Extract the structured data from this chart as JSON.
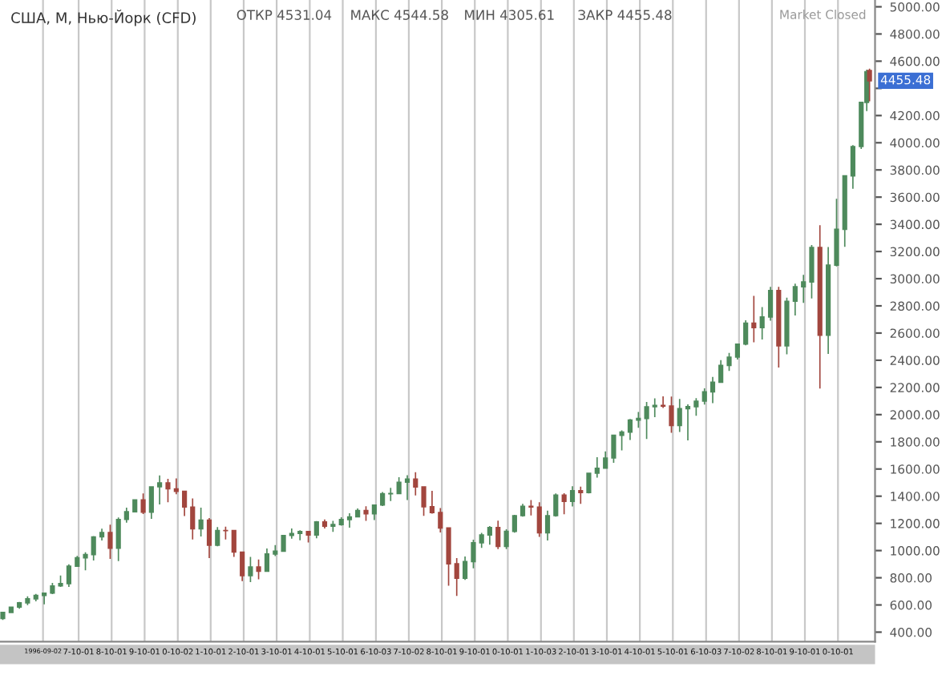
{
  "chart_data": {
    "type": "candlestick",
    "title": "США, М, Нью-Йорк (CFD)",
    "annotations": [
      "ОТКР 4531.04",
      "МАКС 4544.58",
      "МИН 4305.61",
      "ЗАКР 4455.48",
      "Market Closed",
      {
        "text": "4455.48",
        "x": "2021-09",
        "y": 4455.48
      }
    ],
    "x": [
      "1995-06",
      "1995-09",
      "1995-12",
      "1996-03",
      "1996-06",
      "1996-09",
      "1996-12",
      "1997-03",
      "1997-06",
      "1997-09",
      "1997-12",
      "1998-03",
      "1998-06",
      "1998-09",
      "1998-12",
      "1999-03",
      "1999-06",
      "1999-09",
      "1999-12",
      "2000-03",
      "2000-06",
      "2000-09",
      "2000-12",
      "2001-03",
      "2001-06",
      "2001-09",
      "2001-12",
      "2002-03",
      "2002-06",
      "2002-09",
      "2002-12",
      "2003-03",
      "2003-06",
      "2003-09",
      "2003-12",
      "2004-03",
      "2004-06",
      "2004-09",
      "2004-12",
      "2005-03",
      "2005-06",
      "2005-09",
      "2005-12",
      "2006-03",
      "2006-06",
      "2006-09",
      "2006-12",
      "2007-03",
      "2007-06",
      "2007-09",
      "2007-12",
      "2008-03",
      "2008-06",
      "2008-09",
      "2008-12",
      "2009-03",
      "2009-06",
      "2009-09",
      "2009-12",
      "2010-03",
      "2010-06",
      "2010-09",
      "2010-12",
      "2011-03",
      "2011-06",
      "2011-09",
      "2011-12",
      "2012-03",
      "2012-06",
      "2012-09",
      "2012-12",
      "2013-03",
      "2013-06",
      "2013-09",
      "2013-12",
      "2014-03",
      "2014-06",
      "2014-09",
      "2014-12",
      "2015-03",
      "2015-06",
      "2015-09",
      "2015-12",
      "2016-03",
      "2016-06",
      "2016-09",
      "2016-12",
      "2017-03",
      "2017-06",
      "2017-09",
      "2017-12",
      "2018-03",
      "2018-06",
      "2018-09",
      "2018-12",
      "2019-03",
      "2019-06",
      "2019-09",
      "2019-12",
      "2020-03",
      "2020-06",
      "2020-09",
      "2020-12",
      "2021-03",
      "2021-06",
      "2021-08",
      "2021-09"
    ],
    "ohlc": [
      [
        500,
        549,
        490,
        545
      ],
      [
        545,
        586,
        540,
        584
      ],
      [
        584,
        622,
        572,
        616
      ],
      [
        616,
        664,
        598,
        645
      ],
      [
        645,
        681,
        627,
        670
      ],
      [
        670,
        690,
        605,
        687
      ],
      [
        687,
        762,
        680,
        740
      ],
      [
        740,
        817,
        733,
        757
      ],
      [
        757,
        899,
        733,
        885
      ],
      [
        885,
        961,
        882,
        947
      ],
      [
        947,
        987,
        855,
        970
      ],
      [
        970,
        1106,
        927,
        1101
      ],
      [
        1101,
        1161,
        1074,
        1133
      ],
      [
        1133,
        1190,
        939,
        1017
      ],
      [
        1017,
        1244,
        923,
        1229
      ],
      [
        1229,
        1316,
        1205,
        1286
      ],
      [
        1286,
        1373,
        1281,
        1372
      ],
      [
        1372,
        1421,
        1268,
        1282
      ],
      [
        1282,
        1473,
        1233,
        1469
      ],
      [
        1469,
        1553,
        1339,
        1498
      ],
      [
        1498,
        1528,
        1356,
        1454
      ],
      [
        1454,
        1530,
        1414,
        1436
      ],
      [
        1436,
        1436,
        1254,
        1320
      ],
      [
        1320,
        1383,
        1081,
        1160
      ],
      [
        1160,
        1316,
        1103,
        1224
      ],
      [
        1224,
        1239,
        944,
        1040
      ],
      [
        1040,
        1173,
        1032,
        1148
      ],
      [
        1148,
        1176,
        1081,
        1147
      ],
      [
        1147,
        1147,
        953,
        989
      ],
      [
        989,
        994,
        775,
        815
      ],
      [
        815,
        954,
        768,
        879
      ],
      [
        879,
        935,
        789,
        848
      ],
      [
        848,
        1015,
        847,
        975
      ],
      [
        975,
        1040,
        960,
        995
      ],
      [
        995,
        1112,
        992,
        1111
      ],
      [
        1111,
        1163,
        1087,
        1126
      ],
      [
        1126,
        1150,
        1076,
        1140
      ],
      [
        1140,
        1140,
        1060,
        1114
      ],
      [
        1114,
        1217,
        1090,
        1211
      ],
      [
        1211,
        1229,
        1163,
        1180
      ],
      [
        1180,
        1219,
        1137,
        1191
      ],
      [
        1191,
        1245,
        1183,
        1228
      ],
      [
        1228,
        1275,
        1168,
        1248
      ],
      [
        1248,
        1310,
        1245,
        1294
      ],
      [
        1294,
        1326,
        1219,
        1270
      ],
      [
        1270,
        1340,
        1224,
        1335
      ],
      [
        1335,
        1431,
        1327,
        1418
      ],
      [
        1418,
        1461,
        1364,
        1420
      ],
      [
        1420,
        1540,
        1416,
        1503
      ],
      [
        1503,
        1555,
        1371,
        1526
      ],
      [
        1526,
        1576,
        1406,
        1468
      ],
      [
        1468,
        1471,
        1256,
        1322
      ],
      [
        1322,
        1440,
        1272,
        1280
      ],
      [
        1280,
        1313,
        1133,
        1166
      ],
      [
        1166,
        1167,
        741,
        903
      ],
      [
        903,
        944,
        667,
        797
      ],
      [
        797,
        956,
        784,
        919
      ],
      [
        919,
        1080,
        869,
        1057
      ],
      [
        1057,
        1130,
        1020,
        1115
      ],
      [
        1115,
        1180,
        1044,
        1169
      ],
      [
        1169,
        1220,
        1011,
        1030
      ],
      [
        1030,
        1157,
        1011,
        1141
      ],
      [
        1141,
        1263,
        1131,
        1257
      ],
      [
        1257,
        1344,
        1250,
        1325
      ],
      [
        1325,
        1371,
        1259,
        1320
      ],
      [
        1320,
        1356,
        1101,
        1131
      ],
      [
        1131,
        1293,
        1074,
        1257
      ],
      [
        1257,
        1420,
        1250,
        1408
      ],
      [
        1408,
        1422,
        1267,
        1362
      ],
      [
        1362,
        1474,
        1325,
        1440
      ],
      [
        1440,
        1470,
        1343,
        1426
      ],
      [
        1426,
        1570,
        1420,
        1569
      ],
      [
        1569,
        1687,
        1536,
        1606
      ],
      [
        1606,
        1730,
        1604,
        1681
      ],
      [
        1681,
        1849,
        1646,
        1848
      ],
      [
        1848,
        1884,
        1737,
        1872
      ],
      [
        1872,
        1968,
        1814,
        1960
      ],
      [
        1960,
        2019,
        1904,
        1972
      ],
      [
        1972,
        2093,
        1821,
        2058
      ],
      [
        2058,
        2119,
        1981,
        2067
      ],
      [
        2067,
        2134,
        2049,
        2063
      ],
      [
        2063,
        2133,
        1867,
        1920
      ],
      [
        1920,
        2116,
        1872,
        2044
      ],
      [
        2044,
        2075,
        1810,
        2059
      ],
      [
        2059,
        2121,
        1992,
        2099
      ],
      [
        2099,
        2193,
        2074,
        2168
      ],
      [
        2168,
        2278,
        2084,
        2238
      ],
      [
        2238,
        2401,
        2234,
        2362
      ],
      [
        2362,
        2454,
        2322,
        2423
      ],
      [
        2423,
        2519,
        2405,
        2519
      ],
      [
        2519,
        2694,
        2510,
        2673
      ],
      [
        2673,
        2873,
        2532,
        2640
      ],
      [
        2640,
        2791,
        2553,
        2718
      ],
      [
        2718,
        2940,
        2691,
        2913
      ],
      [
        2913,
        2940,
        2347,
        2506
      ],
      [
        2506,
        2860,
        2443,
        2834
      ],
      [
        2834,
        2964,
        2729,
        2941
      ],
      [
        2941,
        3028,
        2822,
        2976
      ],
      [
        2976,
        3248,
        2855,
        3230
      ],
      [
        3230,
        3394,
        2192,
        2584
      ],
      [
        2584,
        3233,
        2447,
        3100
      ],
      [
        3100,
        3588,
        3090,
        3363
      ],
      [
        3363,
        3760,
        3234,
        3756
      ],
      [
        3756,
        3983,
        3662,
        3972
      ],
      [
        3972,
        4300,
        3955,
        4297
      ],
      [
        4297,
        4537,
        4233,
        4523
      ],
      [
        4531.04,
        4544.58,
        4305.61,
        4455.48
      ]
    ],
    "colors": [
      "#4e8a5c",
      "#4e8a5c",
      "#4e8a5c",
      "#4e8a5c",
      "#4e8a5c",
      "#4e8a5c",
      "#4e8a5c",
      "#4e8a5c",
      "#4e8a5c",
      "#4e8a5c",
      "#4e8a5c",
      "#4e8a5c",
      "#4e8a5c",
      "#a2463e",
      "#4e8a5c",
      "#4e8a5c",
      "#4e8a5c",
      "#a2463e",
      "#4e8a5c",
      "#4e8a5c",
      "#a2463e",
      "#a2463e",
      "#a2463e",
      "#a2463e",
      "#4e8a5c",
      "#a2463e",
      "#4e8a5c",
      "#a2463e",
      "#a2463e",
      "#a2463e",
      "#4e8a5c",
      "#a2463e",
      "#4e8a5c",
      "#4e8a5c",
      "#4e8a5c",
      "#4e8a5c",
      "#4e8a5c",
      "#a2463e",
      "#4e8a5c",
      "#a2463e",
      "#4e8a5c",
      "#4e8a5c",
      "#4e8a5c",
      "#4e8a5c",
      "#a2463e",
      "#4e8a5c",
      "#4e8a5c",
      "#4e8a5c",
      "#4e8a5c",
      "#4e8a5c",
      "#a2463e",
      "#a2463e",
      "#a2463e",
      "#a2463e",
      "#a2463e",
      "#a2463e",
      "#4e8a5c",
      "#4e8a5c",
      "#4e8a5c",
      "#4e8a5c",
      "#a2463e",
      "#4e8a5c",
      "#4e8a5c",
      "#4e8a5c",
      "#a2463e",
      "#a2463e",
      "#4e8a5c",
      "#4e8a5c",
      "#a2463e",
      "#4e8a5c",
      "#a2463e",
      "#4e8a5c",
      "#4e8a5c",
      "#4e8a5c",
      "#4e8a5c",
      "#4e8a5c",
      "#4e8a5c",
      "#4e8a5c",
      "#4e8a5c",
      "#4e8a5c",
      "#a2463e",
      "#a2463e",
      "#4e8a5c",
      "#4e8a5c",
      "#4e8a5c",
      "#4e8a5c",
      "#4e8a5c",
      "#4e8a5c",
      "#4e8a5c",
      "#4e8a5c",
      "#4e8a5c",
      "#a2463e",
      "#4e8a5c",
      "#4e8a5c",
      "#a2463e",
      "#4e8a5c",
      "#4e8a5c",
      "#4e8a5c",
      "#4e8a5c",
      "#a2463e",
      "#4e8a5c",
      "#4e8a5c",
      "#4e8a5c",
      "#4e8a5c",
      "#4e8a5c",
      "#4e8a5c",
      "#a2463e"
    ],
    "xlim": [
      "1995-05",
      "2021-11"
    ],
    "xticks": [
      {
        "value": "1996-09-02",
        "label": "1996-09-02"
      },
      {
        "value": "1997-10-01",
        "label": "7-10-01"
      },
      {
        "value": "1998-10-01",
        "label": "8-10-01"
      },
      {
        "value": "1999-10-01",
        "label": "9-10-01"
      },
      {
        "value": "2000-10-02",
        "label": "0-10-02"
      },
      {
        "value": "2001-10-01",
        "label": "1-10-01"
      },
      {
        "value": "2002-10-01",
        "label": "2-10-01"
      },
      {
        "value": "2003-10-01",
        "label": "3-10-01"
      },
      {
        "value": "2004-10-01",
        "label": "4-10-01"
      },
      {
        "value": "2005-10-01",
        "label": "5-10-01"
      },
      {
        "value": "2006-10-03",
        "label": "6-10-03"
      },
      {
        "value": "2007-10-02",
        "label": "7-10-02"
      },
      {
        "value": "2008-10-01",
        "label": "8-10-01"
      },
      {
        "value": "2009-10-01",
        "label": "9-10-01"
      },
      {
        "value": "2010-10-01",
        "label": "0-10-01"
      },
      {
        "value": "2011-10-03",
        "label": "1-10-03"
      },
      {
        "value": "2012-10-01",
        "label": "2-10-01"
      },
      {
        "value": "2013-10-01",
        "label": "3-10-01"
      },
      {
        "value": "2014-10-01",
        "label": "4-10-01"
      },
      {
        "value": "2015-10-01",
        "label": "5-10-01"
      },
      {
        "value": "2016-10-03",
        "label": "6-10-03"
      },
      {
        "value": "2017-10-02",
        "label": "7-10-02"
      },
      {
        "value": "2018-10-01",
        "label": "8-10-01"
      },
      {
        "value": "2019-10-01",
        "label": "9-10-01"
      },
      {
        "value": "2020-10-01",
        "label": "0-10-01"
      }
    ],
    "ylim": [
      330,
      5050
    ],
    "yticks": [
      {
        "value": 400,
        "label": "400.00"
      },
      {
        "value": 600,
        "label": "600.00"
      },
      {
        "value": 800,
        "label": "800.00"
      },
      {
        "value": 1000,
        "label": "1000.00"
      },
      {
        "value": 1200,
        "label": "1200.00"
      },
      {
        "value": 1400,
        "label": "1400.00"
      },
      {
        "value": 1600,
        "label": "1600.00"
      },
      {
        "value": 1800,
        "label": "1800.00"
      },
      {
        "value": 2000,
        "label": "2000.00"
      },
      {
        "value": 2200,
        "label": "2200.00"
      },
      {
        "value": 2400,
        "label": "2400.00"
      },
      {
        "value": 2600,
        "label": "2600.00"
      },
      {
        "value": 2800,
        "label": "2800.00"
      },
      {
        "value": 3000,
        "label": "3000.00"
      },
      {
        "value": 3200,
        "label": "3200.00"
      },
      {
        "value": 3400,
        "label": "3400.00"
      },
      {
        "value": 3600,
        "label": "3600.00"
      },
      {
        "value": 3800,
        "label": "3800.00"
      },
      {
        "value": 4000,
        "label": "4000.00"
      },
      {
        "value": 4200,
        "label": "4200.00"
      },
      {
        "value": 4400,
        "label": null
      },
      {
        "value": 4600,
        "label": "4600.00"
      },
      {
        "value": 4800,
        "label": "4800.00"
      },
      {
        "value": 5000,
        "label": "5000.00"
      }
    ],
    "grid": "x"
  }
}
